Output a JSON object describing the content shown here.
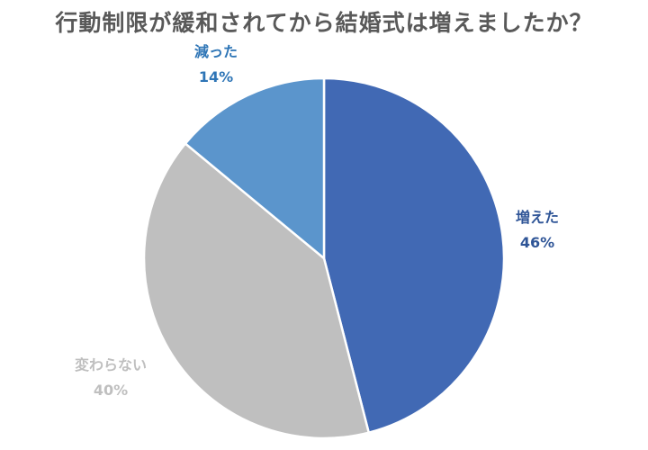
{
  "chart_data": {
    "type": "pie",
    "title": "行動制限が緩和されてから結婚式は増えましたか？",
    "start_angle_deg": 0,
    "direction": "clockwise",
    "slices": [
      {
        "label": "増えた",
        "value": 46,
        "value_label": "46%",
        "color": "#4169B4",
        "label_color": "#2F5597"
      },
      {
        "label": "変わらない",
        "value": 40,
        "value_label": "40%",
        "color": "#BFBFBF",
        "label_color": "#BFBFBF"
      },
      {
        "label": "減った",
        "value": 14,
        "value_label": "14%",
        "color": "#5B95CC",
        "label_color": "#2E75B6"
      }
    ]
  }
}
